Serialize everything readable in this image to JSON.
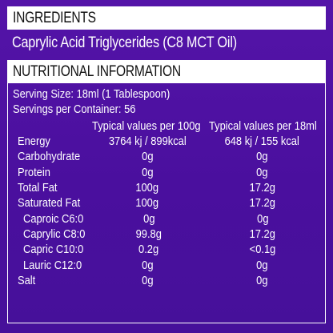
{
  "ingredients": {
    "heading": "INGREDIENTS",
    "text": "Caprylic Acid Triglycerides (C8 MCT Oil)"
  },
  "nutrition": {
    "heading": "NUTRITIONAL INFORMATION",
    "serving_size": "Serving Size: 18ml (1 Tablespoon)",
    "servings_per_container": "Servings per Container: 56",
    "columns": [
      "Typical values per 100g",
      "Typical values per 18ml"
    ],
    "rows": [
      {
        "label": "Energy",
        "per100": "3764 kj / 899kcal",
        "per18": "648 kj / 155 kcal"
      },
      {
        "label": "Carbohydrate",
        "per100": "0g",
        "per18": "0g"
      },
      {
        "label": "Protein",
        "per100": "0g",
        "per18": "0g"
      },
      {
        "label": "Total Fat",
        "per100": "100g",
        "per18": "17.2g"
      },
      {
        "label": "Saturated Fat",
        "per100": "100g",
        "per18": "17.2g"
      },
      {
        "label": "Caproic C6:0",
        "per100": "0g",
        "per18": "0g"
      },
      {
        "label": "Caprylic C8:0",
        "per100": "99.8g",
        "per18": "17.2g"
      },
      {
        "label": "Capric C10:0",
        "per100": "0.2g",
        "per18": "<0.1g"
      },
      {
        "label": "Lauric C12:0",
        "per100": "0g",
        "per18": "0g"
      },
      {
        "label": "Salt",
        "per100": "0g",
        "per18": "0g"
      }
    ]
  }
}
